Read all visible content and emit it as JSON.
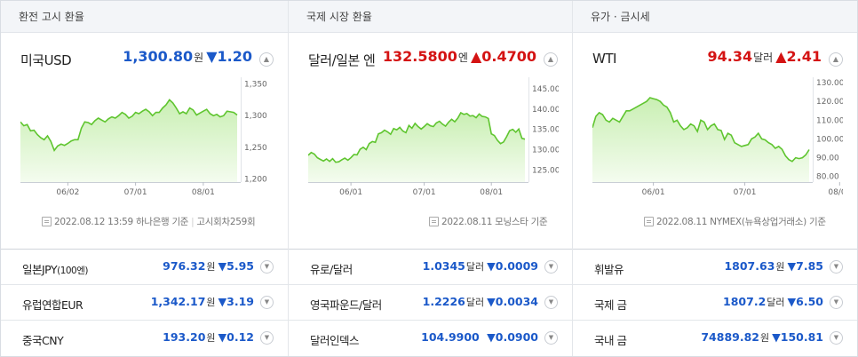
{
  "panels": [
    {
      "tab": "환전 고시 환율",
      "name": "미국USD",
      "price": "1,300.80",
      "unit": "원",
      "arrow": "▼",
      "change": "1.20",
      "direction": "down",
      "note_date": "2022.08.12 13:59",
      "note_source": "하나은행 기준",
      "note_extra": "고시회차259회",
      "chart_data": {
        "type": "line",
        "ylim": [
          1195,
          1355
        ],
        "yticks": [
          "1,350",
          "1,300",
          "1,250",
          "1,200"
        ],
        "ytick_values": [
          1350,
          1300,
          1250,
          1200
        ],
        "xticks": [
          "06/02",
          "07/01",
          "08/01"
        ],
        "xtick_positions": [
          14,
          34,
          54
        ],
        "values": [
          1290,
          1284,
          1286,
          1276,
          1277,
          1270,
          1265,
          1262,
          1268,
          1259,
          1245,
          1252,
          1255,
          1253,
          1256,
          1260,
          1262,
          1262,
          1280,
          1290,
          1289,
          1286,
          1292,
          1296,
          1293,
          1290,
          1295,
          1298,
          1296,
          1300,
          1305,
          1302,
          1296,
          1299,
          1305,
          1303,
          1307,
          1310,
          1306,
          1300,
          1305,
          1305,
          1312,
          1317,
          1325,
          1320,
          1312,
          1303,
          1306,
          1303,
          1312,
          1309,
          1301,
          1304,
          1307,
          1310,
          1303,
          1300,
          1302,
          1298,
          1300,
          1307,
          1306,
          1305,
          1301
        ]
      }
    },
    {
      "tab": "국제 시장 환율",
      "name": "달러/일본 엔",
      "price": "132.5800",
      "unit": "엔",
      "arrow": "▲",
      "change": "0.4700",
      "direction": "up",
      "note_date": "2022.08.11",
      "note_source": "모닝스타 기준",
      "note_extra": "",
      "chart_data": {
        "type": "line",
        "ylim": [
          122,
          147
        ],
        "yticks": [
          "145.00",
          "140.00",
          "135.00",
          "130.00",
          "125.00"
        ],
        "ytick_values": [
          145,
          140,
          135,
          130,
          125
        ],
        "xticks": [
          "06/01",
          "07/01",
          "08/01"
        ],
        "xtick_positions": [
          14,
          38,
          60
        ],
        "values": [
          128.6,
          129.3,
          128.9,
          128.0,
          127.6,
          127.2,
          127.7,
          127.1,
          127.8,
          126.9,
          127.0,
          127.5,
          127.9,
          127.4,
          128.0,
          128.8,
          128.7,
          130.1,
          130.6,
          130.0,
          131.5,
          132.0,
          131.8,
          133.9,
          134.2,
          134.8,
          134.4,
          133.8,
          135.2,
          134.9,
          135.5,
          134.6,
          134.2,
          136.0,
          135.3,
          136.5,
          135.7,
          135.1,
          135.7,
          136.4,
          135.9,
          135.7,
          136.6,
          137.0,
          136.3,
          135.8,
          136.8,
          137.5,
          136.9,
          137.8,
          139.1,
          138.7,
          138.9,
          138.3,
          138.4,
          137.9,
          138.8,
          138.2,
          138.1,
          137.7,
          133.9,
          133.5,
          132.3,
          131.5,
          131.9,
          133.2,
          134.7,
          135.0,
          134.3,
          135.1,
          132.8,
          132.6
        ]
      }
    },
    {
      "tab": "유가 · 금시세",
      "name": "WTI",
      "price": "94.34",
      "unit": "달러",
      "arrow": "▲",
      "change": "2.41",
      "direction": "up",
      "note_date": "2022.08.11",
      "note_source": "NYMEX(뉴욕상업거래소) 기준",
      "note_extra": "",
      "chart_data": {
        "type": "line",
        "ylim": [
          77,
          131
        ],
        "yticks": [
          "130.00",
          "120.00",
          "110.00",
          "100.00",
          "90.00",
          "80.00"
        ],
        "ytick_values": [
          130,
          120,
          110,
          100,
          90,
          80
        ],
        "xticks": [
          "06/01",
          "07/01",
          "08/01"
        ],
        "xtick_positions": [
          18,
          45,
          73
        ],
        "values": [
          106,
          112,
          114,
          113,
          110,
          109,
          111,
          110,
          109,
          112,
          115,
          115,
          116,
          117,
          118,
          119,
          120,
          122,
          121.5,
          121,
          120,
          118,
          117,
          114,
          109,
          110,
          107,
          105,
          106,
          108,
          107,
          104,
          110,
          109,
          105,
          107,
          108,
          105,
          104.5,
          99.7,
          103,
          102,
          98,
          97,
          96,
          96.5,
          97,
          100,
          101,
          103,
          100,
          99.5,
          98,
          97,
          95,
          96,
          94.5,
          91,
          89,
          88,
          90,
          89.5,
          90,
          91.5,
          94.3
        ]
      }
    }
  ],
  "sub_rows": [
    [
      {
        "name": "일본JPY",
        "name_small": "(100엔)",
        "value": "976.32",
        "unit": "원",
        "arrow": "▼",
        "change": "5.95",
        "direction": "down"
      },
      {
        "name": "유럽연합EUR",
        "name_small": "",
        "value": "1,342.17",
        "unit": "원",
        "arrow": "▼",
        "change": "3.19",
        "direction": "down"
      },
      {
        "name": "중국CNY",
        "name_small": "",
        "value": "193.20",
        "unit": "원",
        "arrow": "▼",
        "change": "0.12",
        "direction": "down"
      }
    ],
    [
      {
        "name": "유로/달러",
        "name_small": "",
        "value": "1.0345",
        "unit": "달러",
        "arrow": "▼",
        "change": "0.0009",
        "direction": "down"
      },
      {
        "name": "영국파운드/달러",
        "name_small": "",
        "value": "1.2226",
        "unit": "달러",
        "arrow": "▼",
        "change": "0.0034",
        "direction": "down"
      },
      {
        "name": "달러인덱스",
        "name_small": "",
        "value": "104.9900",
        "unit": "",
        "arrow": "▼",
        "change": "0.0900",
        "direction": "down"
      }
    ],
    [
      {
        "name": "휘발유",
        "name_small": "",
        "value": "1807.63",
        "unit": "원",
        "arrow": "▼",
        "change": "7.85",
        "direction": "down"
      },
      {
        "name": "국제 금",
        "name_small": "",
        "value": "1807.2",
        "unit": "달러",
        "arrow": "▼",
        "change": "6.50",
        "direction": "down"
      },
      {
        "name": "국내 금",
        "name_small": "",
        "value": "74889.82",
        "unit": "원",
        "arrow": "▼",
        "change": "150.81",
        "direction": "down"
      }
    ]
  ],
  "colors": {
    "down": "#1b59c9",
    "up": "#d41313",
    "line": "#5fc52f",
    "fill_top": "#c9efb3",
    "fill_bottom": "#f4fcef"
  },
  "icons": {
    "collapse": "chevron-up-icon",
    "expand": "chevron-down-icon",
    "note": "document-icon"
  }
}
